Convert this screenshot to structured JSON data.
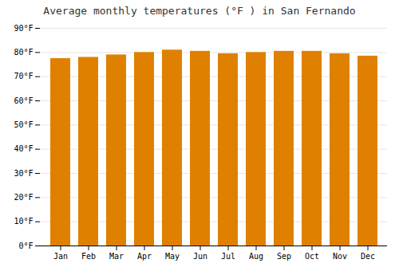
{
  "chart_data": {
    "type": "bar",
    "title": "Average monthly temperatures (°F ) in San Fernando",
    "categories": [
      "Jan",
      "Feb",
      "Mar",
      "Apr",
      "May",
      "Jun",
      "Jul",
      "Aug",
      "Sep",
      "Oct",
      "Nov",
      "Dec"
    ],
    "values": [
      77.5,
      78.0,
      79.0,
      80.0,
      81.0,
      80.5,
      79.5,
      80.0,
      80.5,
      80.5,
      79.5,
      78.5
    ],
    "color": "#E08000",
    "ylim": [
      0,
      90
    ],
    "yticks": [
      {
        "value": 0,
        "label": "0°F"
      },
      {
        "value": 10,
        "label": "10°F"
      },
      {
        "value": 20,
        "label": "20°F"
      },
      {
        "value": 30,
        "label": "30°F"
      },
      {
        "value": 40,
        "label": "40°F"
      },
      {
        "value": 50,
        "label": "50°F"
      },
      {
        "value": 60,
        "label": "60°F"
      },
      {
        "value": 70,
        "label": "70°F"
      },
      {
        "value": 80,
        "label": "80°F"
      },
      {
        "value": 90,
        "label": "90°F"
      }
    ],
    "grid": true
  }
}
